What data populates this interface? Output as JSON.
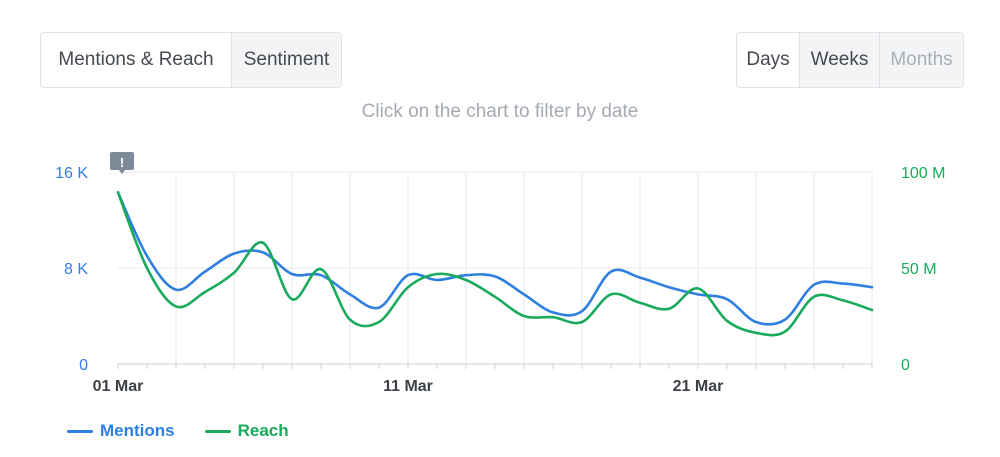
{
  "tabs": {
    "mentions_reach": "Mentions & Reach",
    "sentiment": "Sentiment"
  },
  "period": {
    "days": "Days",
    "weeks": "Weeks",
    "months": "Months"
  },
  "hint": "Click on the chart to filter by date",
  "colors": {
    "mentions": "#2f7fe0",
    "reach": "#19ab5b",
    "grid": "#e8eaed",
    "axis": "#c8cdd2",
    "marker": "#7f8a98"
  },
  "chart_data": {
    "type": "line",
    "x_ticks": [
      "01 Mar",
      "11 Mar",
      "21 Mar"
    ],
    "left_axis": {
      "ticks": [
        "16 K",
        "8 K",
        "0"
      ],
      "range": [
        0,
        16000
      ]
    },
    "right_axis": {
      "ticks": [
        "100 M",
        "50 M",
        "0"
      ],
      "range": [
        0,
        100000000
      ]
    },
    "grid": true,
    "legend_position": "bottom-left",
    "annotation_icon": "exclamation-marker-icon",
    "series": [
      {
        "name": "Mentions",
        "axis": "left",
        "values": [
          14300,
          9000,
          6200,
          7700,
          9200,
          9300,
          7500,
          7400,
          5800,
          4700,
          7400,
          7000,
          7400,
          7300,
          5800,
          4300,
          4400,
          7700,
          7200,
          6400,
          5800,
          5400,
          3500,
          3700,
          6600,
          6700,
          6400
        ]
      },
      {
        "name": "Reach",
        "axis": "left",
        "values": [
          14300,
          8000,
          4800,
          6000,
          7600,
          10100,
          5400,
          7900,
          3700,
          3500,
          6400,
          7500,
          7000,
          5600,
          4000,
          3900,
          3500,
          5800,
          5100,
          4600,
          6300,
          3600,
          2600,
          2700,
          5600,
          5300,
          4500
        ]
      }
    ]
  }
}
